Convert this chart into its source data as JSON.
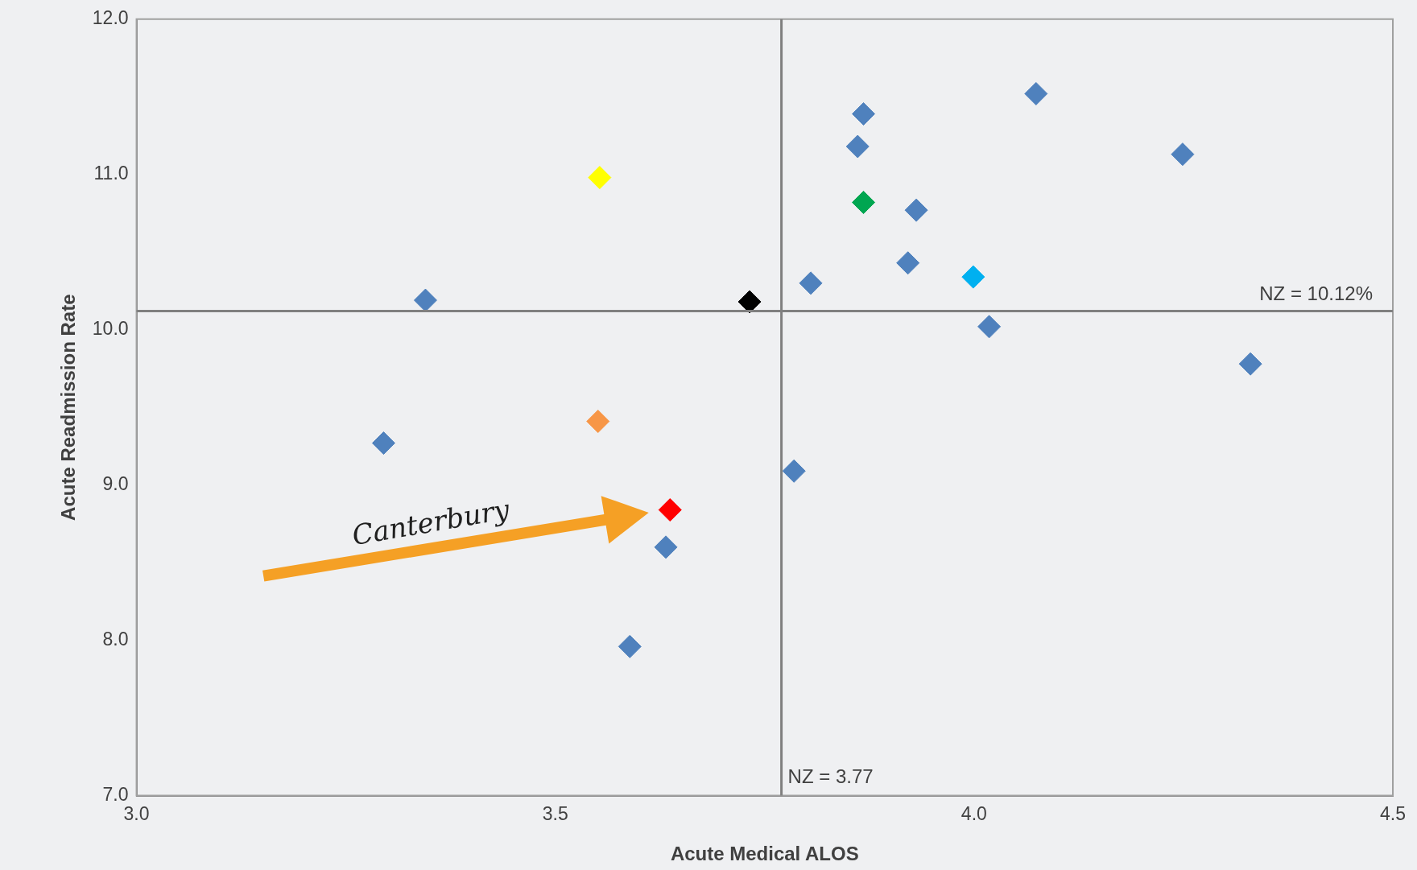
{
  "chart_data": {
    "type": "scatter",
    "xlabel": "Acute Medical ALOS",
    "ylabel": "Acute Readmission Rate",
    "x": [
      3.345,
      3.553,
      3.732,
      3.551,
      3.295,
      3.637,
      3.632,
      3.589,
      3.785,
      3.805,
      3.868,
      3.861,
      3.868,
      3.931,
      3.921,
      3.999,
      4.018,
      4.074,
      4.249,
      4.33
    ],
    "values": [
      10.19,
      10.98,
      10.18,
      9.41,
      9.27,
      8.84,
      8.6,
      7.96,
      9.09,
      10.3,
      11.39,
      11.18,
      10.82,
      10.77,
      10.43,
      10.34,
      10.02,
      11.52,
      11.13,
      9.78
    ],
    "colors": [
      "#4f81bd",
      "#ffff00",
      "#000000",
      "#f79646",
      "#4f81bd",
      "#ff0000",
      "#4f81bd",
      "#4f81bd",
      "#4f81bd",
      "#4f81bd",
      "#4f81bd",
      "#4f81bd",
      "#00a651",
      "#4f81bd",
      "#4f81bd",
      "#00b0f0",
      "#4f81bd",
      "#4f81bd",
      "#4f81bd",
      "#4f81bd"
    ],
    "marker": "diamond",
    "grid": false,
    "legend": false,
    "xlim": [
      3.0,
      4.5
    ],
    "xticks": [
      {
        "value": 3,
        "label": "3.0"
      },
      {
        "value": 3.5,
        "label": "3.5"
      },
      {
        "value": 4,
        "label": "4.0"
      },
      {
        "value": 4.5,
        "label": "4.5"
      }
    ],
    "ylim": [
      7.0,
      12.0
    ],
    "yticks": [
      {
        "value": 7,
        "label": "7.0"
      },
      {
        "value": 8,
        "label": "8.0"
      },
      {
        "value": 9,
        "label": "9.0"
      },
      {
        "value": 10,
        "label": "10.0"
      },
      {
        "value": 11,
        "label": "11.0"
      },
      {
        "value": 12,
        "label": "12.0"
      }
    ],
    "ref_lines": [
      {
        "axis": "x",
        "value": 3.77,
        "label": "NZ = 3.77",
        "color": "#808080"
      },
      {
        "axis": "y",
        "value": 10.12,
        "label": "NZ = 10.12%",
        "color": "#808080"
      }
    ],
    "annotations": [
      "Canterbury"
    ]
  }
}
